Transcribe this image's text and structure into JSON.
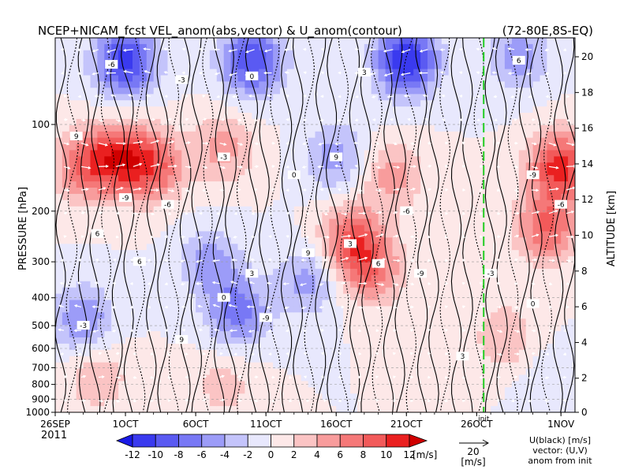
{
  "chart_data": {
    "type": "heatmap",
    "title": "NCEP+NICAM_fcst VEL_anom(abs,vector) & U_anom(contour)",
    "region": "(72-80E,8S-EQ)",
    "ylabel_left": "PRESSURE [hPa]",
    "ylabel_right": "ALTITUDE [km]",
    "x_ticks": [
      "26SEP",
      "1OCT",
      "6OCT",
      "11OCT",
      "16OCT",
      "21OCT",
      "26OCT",
      "1NOV"
    ],
    "x_year": "2011",
    "x_range_days": [
      0,
      37
    ],
    "pressure_ticks": [
      100,
      200,
      300,
      400,
      500,
      600,
      700,
      800,
      900,
      1000
    ],
    "pressure_range": [
      50,
      1000
    ],
    "altitude_ticks": [
      0,
      2,
      4,
      6,
      8,
      10,
      12,
      14,
      16,
      18,
      20
    ],
    "init_marker_label": "init",
    "init_marker_day": 30.5,
    "colorbar": {
      "levels": [
        -12,
        -10,
        -8,
        -6,
        -4,
        -2,
        0,
        2,
        4,
        6,
        8,
        10,
        12
      ],
      "tick_labels": [
        "-12",
        "-10",
        "-8",
        "-6",
        "-4",
        "-2",
        "0",
        "2",
        "4",
        "6",
        "8",
        "10",
        "12"
      ],
      "unit": "[m/s]",
      "colors": [
        "#1a1ae6",
        "#3a3aef",
        "#5a5af2",
        "#7878f5",
        "#9c9cf8",
        "#c4c4fb",
        "#e8e8fd",
        "#fde8e8",
        "#fbc4c4",
        "#f89c9c",
        "#f57878",
        "#f25a5a",
        "#ea2020",
        "#d00000"
      ]
    },
    "vector_key": {
      "value": "20",
      "unit": "[m/s]"
    },
    "legend_text": [
      "U(black) [m/s]",
      "vector: (U,V)",
      "anom from init"
    ],
    "contour_labels": [
      "-6",
      "-3",
      "0",
      "3",
      "6",
      "9",
      "-9"
    ],
    "anomaly_features": [
      {
        "day": 5,
        "p": 60,
        "u": -11
      },
      {
        "day": 14,
        "p": 60,
        "u": -10
      },
      {
        "day": 25,
        "p": 60,
        "u": -12
      },
      {
        "day": 33,
        "p": 58,
        "u": -5
      },
      {
        "day": 2,
        "p": 140,
        "u": 7
      },
      {
        "day": 4.5,
        "p": 130,
        "u": 9
      },
      {
        "day": 7,
        "p": 140,
        "u": 8
      },
      {
        "day": 12,
        "p": 120,
        "u": 5
      },
      {
        "day": 20,
        "p": 130,
        "u": -5
      },
      {
        "day": 21,
        "p": 250,
        "u": 8
      },
      {
        "day": 22.5,
        "p": 320,
        "u": 7
      },
      {
        "day": 24,
        "p": 150,
        "u": 5
      },
      {
        "day": 36,
        "p": 140,
        "u": 11
      },
      {
        "day": 35,
        "p": 230,
        "u": 8
      },
      {
        "day": 2,
        "p": 480,
        "u": -6
      },
      {
        "day": 13,
        "p": 450,
        "u": -7
      },
      {
        "day": 11,
        "p": 300,
        "u": -5
      },
      {
        "day": 18,
        "p": 350,
        "u": -5
      },
      {
        "day": 3,
        "p": 750,
        "u": 4
      },
      {
        "day": 12,
        "p": 800,
        "u": 3
      },
      {
        "day": 32,
        "p": 550,
        "u": 4
      },
      {
        "day": 35,
        "p": 800,
        "u": -2
      }
    ]
  }
}
